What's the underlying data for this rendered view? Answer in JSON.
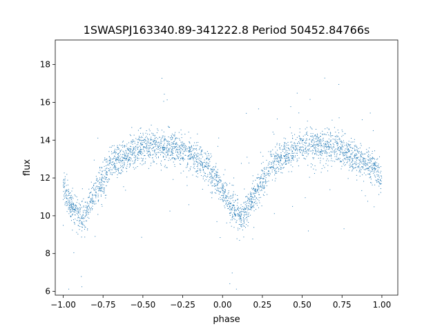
{
  "chart_data": {
    "type": "scatter",
    "title": "1SWASPJ163340.89-341222.8 Period 50452.84766s",
    "xlabel": "phase",
    "ylabel": "flux",
    "xlim": [
      -1.05,
      1.1
    ],
    "ylim": [
      5.8,
      19.3
    ],
    "xticks": [
      -1.0,
      -0.75,
      -0.5,
      -0.25,
      0.0,
      0.25,
      0.5,
      0.75,
      1.0
    ],
    "xtick_labels": [
      "−1.00",
      "−0.75",
      "−0.50",
      "−0.25",
      "0.00",
      "0.25",
      "0.50",
      "0.75",
      "1.00"
    ],
    "yticks": [
      6,
      8,
      10,
      12,
      14,
      16,
      18
    ],
    "ytick_labels": [
      "6",
      "8",
      "10",
      "12",
      "14",
      "16",
      "18"
    ],
    "grid": false,
    "marker_color": "#1f77b4",
    "series": [
      {
        "x": [
          -1.0,
          -0.95,
          -0.9,
          -0.87,
          -0.8,
          -0.7,
          -0.6,
          -0.5,
          -0.4,
          -0.3,
          -0.2,
          -0.1,
          0.0,
          0.05,
          0.1,
          0.13,
          0.2,
          0.3,
          0.4,
          0.5,
          0.6,
          0.7,
          0.8,
          0.9,
          0.95,
          1.0
        ],
        "y": [
          11.5,
          10.6,
          10.0,
          9.9,
          11.2,
          12.8,
          13.2,
          13.6,
          13.7,
          13.6,
          13.2,
          12.7,
          11.3,
          10.5,
          10.0,
          9.9,
          11.1,
          12.7,
          13.2,
          13.6,
          13.7,
          13.6,
          13.2,
          12.8,
          12.6,
          11.8
        ]
      }
    ]
  }
}
